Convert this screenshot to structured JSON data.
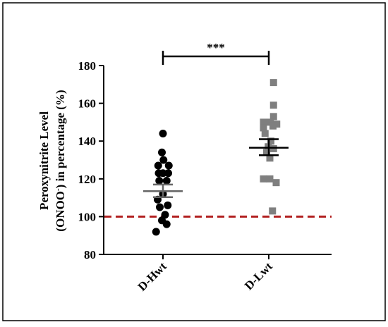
{
  "chart_data": {
    "type": "scatter",
    "ylabel_line1": "Peroxynitrite Level",
    "ylabel_line2_pre": "(ONOO",
    "ylabel_line2_sup": "-",
    "ylabel_line2_post": ") in percentage (%)",
    "ylabel": "Peroxynitrite Level (ONOO-) in percentage (%)",
    "ylim": [
      80,
      180
    ],
    "yticks": [
      80,
      100,
      120,
      140,
      160,
      180
    ],
    "ytick_labels": [
      "80",
      "100",
      "120",
      "140",
      "160",
      "180"
    ],
    "categories": [
      "D-Hwt",
      "D-Lwt"
    ],
    "series": [
      {
        "name": "D-Hwt",
        "marker": "circle",
        "color": "#000000",
        "mean": 113.5,
        "sem": [
          110.3,
          117.0
        ],
        "mean_line_color": "#666666",
        "points": [
          {
            "offset": 0.0,
            "y": 144
          },
          {
            "offset": -0.02,
            "y": 134
          },
          {
            "offset": 0.01,
            "y": 130
          },
          {
            "offset": -0.09,
            "y": 127
          },
          {
            "offset": 0.11,
            "y": 127
          },
          {
            "offset": -0.08,
            "y": 123
          },
          {
            "offset": 0.0,
            "y": 123
          },
          {
            "offset": 0.1,
            "y": 123
          },
          {
            "offset": -0.07,
            "y": 119
          },
          {
            "offset": 0.07,
            "y": 119
          },
          {
            "offset": 0.0,
            "y": 112
          },
          {
            "offset": -0.1,
            "y": 109
          },
          {
            "offset": -0.06,
            "y": 105
          },
          {
            "offset": 0.09,
            "y": 106
          },
          {
            "offset": 0.04,
            "y": 101
          },
          {
            "offset": -0.02,
            "y": 98
          },
          {
            "offset": 0.07,
            "y": 96
          },
          {
            "offset": -0.13,
            "y": 92
          }
        ]
      },
      {
        "name": "D-Lwt",
        "marker": "square",
        "color": "#7f7f7f",
        "mean": 136.5,
        "sem": [
          132.5,
          141.0
        ],
        "mean_line_color": "#000000",
        "points": [
          {
            "offset": 0.09,
            "y": 171
          },
          {
            "offset": 0.09,
            "y": 159
          },
          {
            "offset": 0.09,
            "y": 153
          },
          {
            "offset": -0.1,
            "y": 150
          },
          {
            "offset": -0.1,
            "y": 147
          },
          {
            "offset": 0.03,
            "y": 150
          },
          {
            "offset": 0.15,
            "y": 149
          },
          {
            "offset": 0.08,
            "y": 148
          },
          {
            "offset": -0.07,
            "y": 144
          },
          {
            "offset": 0.04,
            "y": 140
          },
          {
            "offset": -0.01,
            "y": 137
          },
          {
            "offset": 0.09,
            "y": 136
          },
          {
            "offset": -0.04,
            "y": 134
          },
          {
            "offset": 0.02,
            "y": 131
          },
          {
            "offset": -0.1,
            "y": 120
          },
          {
            "offset": 0.02,
            "y": 120
          },
          {
            "offset": 0.14,
            "y": 118
          },
          {
            "offset": 0.07,
            "y": 103
          }
        ]
      }
    ],
    "reference_line": {
      "y": 100,
      "color": "#b22222",
      "style": "dashed"
    },
    "significance": {
      "label": "***",
      "between": [
        "D-Hwt",
        "D-Lwt"
      ]
    },
    "grid": false,
    "legend": "none"
  }
}
